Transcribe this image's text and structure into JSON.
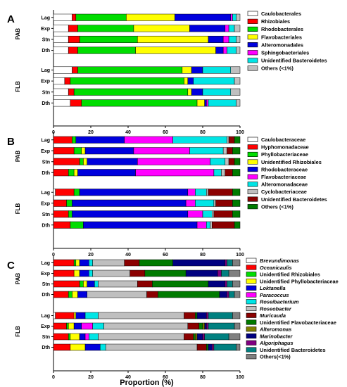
{
  "colors": {
    "white": "#FFFFFF",
    "red": "#FF0000",
    "green": "#00DD00",
    "yellow": "#FFFF00",
    "blue": "#0000DD",
    "magenta": "#FF00FF",
    "cyan": "#00E5E5",
    "gray": "#BFBFBF",
    "darkred": "#8B0000",
    "darkgreen": "#007A00",
    "olive": "#808000",
    "navy": "#000080",
    "purple": "#800080",
    "teal": "#008080",
    "dimgray": "#808080"
  },
  "chart_data": [
    {
      "type": "bar",
      "panel": "A",
      "orientation": "horizontal",
      "stacked": true,
      "xlim": [
        0,
        100
      ],
      "xticks": [
        "0",
        "20",
        "40",
        "60",
        "80",
        "100"
      ],
      "groups": [
        {
          "label": "PAB",
          "categories": [
            "Lag",
            "Exp",
            "Stn",
            "Dth"
          ]
        },
        {
          "label": "FLB",
          "categories": [
            "Lag",
            "Exp",
            "Stn",
            "Dth"
          ]
        }
      ],
      "series": [
        {
          "name": "Caulobacterales",
          "color": "white",
          "values": [
            [
              10,
              8,
              8,
              8
            ],
            [
              10,
              6,
              8,
              9
            ]
          ]
        },
        {
          "name": "Rhizobiales",
          "color": "red",
          "values": [
            [
              2,
              5,
              6,
              5
            ],
            [
              3,
              3,
              3,
              6
            ]
          ]
        },
        {
          "name": "Rhodobacterales",
          "color": "green",
          "values": [
            [
              27,
              30,
              31,
              31
            ],
            [
              56,
              61,
              61,
              62
            ]
          ]
        },
        {
          "name": "Flavobacteriales",
          "color": "yellow",
          "values": [
            [
              26,
              30,
              38,
              43
            ],
            [
              5,
              2,
              2,
              4
            ]
          ]
        },
        {
          "name": "Alteromonadales",
          "color": "blue",
          "values": [
            [
              30,
              19,
              8,
              4
            ],
            [
              6,
              3,
              6,
              1
            ]
          ]
        },
        {
          "name": "Sphingobacteriales",
          "color": "magenta",
          "values": [
            [
              1,
              2,
              3,
              2
            ],
            [
              0,
              0,
              0,
              1
            ]
          ]
        },
        {
          "name": "Unidentified Bacteroidetes",
          "color": "cyan",
          "values": [
            [
              2,
              3,
              4,
              5
            ],
            [
              15,
              22,
              15,
              15
            ]
          ]
        },
        {
          "name": "Others (<1%)",
          "color": "gray",
          "values": [
            [
              2,
              3,
              2,
              2
            ],
            [
              5,
              3,
              5,
              2
            ]
          ]
        }
      ]
    },
    {
      "type": "bar",
      "panel": "B",
      "orientation": "horizontal",
      "stacked": true,
      "xlim": [
        0,
        100
      ],
      "xticks": [
        "0",
        "20",
        "40",
        "60",
        "80",
        "100"
      ],
      "groups": [
        {
          "label": "PAB",
          "categories": [
            "Lag",
            "Exp",
            "Stn",
            "Dth"
          ]
        },
        {
          "label": "FLB",
          "categories": [
            "Lag",
            "Exp",
            "Stn",
            "Dth"
          ]
        }
      ],
      "series": [
        {
          "name": "Caulobacteraceae",
          "color": "white",
          "values": [
            [
              0,
              0,
              0,
              0
            ],
            [
              1,
              0,
              0,
              0
            ]
          ]
        },
        {
          "name": "Hyphomonadaceae",
          "color": "red",
          "values": [
            [
              10,
              11,
              14,
              8
            ],
            [
              10,
              7,
              8,
              9
            ]
          ]
        },
        {
          "name": "Phyllobacteriaceae",
          "color": "green",
          "values": [
            [
              2,
              4,
              2,
              3
            ],
            [
              3,
              3,
              2,
              7
            ]
          ]
        },
        {
          "name": "Unidentified Rhizobiales",
          "color": "yellow",
          "values": [
            [
              0,
              2,
              2,
              2
            ],
            [
              0,
              0,
              0,
              0
            ]
          ]
        },
        {
          "name": "Rhodobacteraceae",
          "color": "blue",
          "values": [
            [
              26,
              26,
              27,
              31
            ],
            [
              58,
              61,
              62,
              61
            ]
          ]
        },
        {
          "name": "Flavobacteriaceae",
          "color": "magenta",
          "values": [
            [
              26,
              30,
              39,
              42
            ],
            [
              4,
              5,
              8,
              5
            ]
          ]
        },
        {
          "name": "Alteromonadaceae",
          "color": "cyan",
          "values": [
            [
              29,
              18,
              8,
              4
            ],
            [
              6,
              10,
              5,
              2
            ]
          ]
        },
        {
          "name": "Cyclobacteriaceae",
          "color": "gray",
          "values": [
            [
              1,
              2,
              2,
              2
            ],
            [
              1,
              1,
              1,
              1
            ]
          ]
        },
        {
          "name": "Unidentified Bacteroidetes",
          "color": "darkred",
          "values": [
            [
              3,
              3,
              3,
              4
            ],
            [
              13,
              9,
              10,
              12
            ]
          ]
        },
        {
          "name": "Others (<1%)",
          "color": "darkgreen",
          "values": [
            [
              3,
              4,
              3,
              4
            ],
            [
              4,
              4,
              4,
              3
            ]
          ]
        }
      ]
    },
    {
      "type": "bar",
      "panel": "C",
      "orientation": "horizontal",
      "stacked": true,
      "xlim": [
        0,
        100
      ],
      "xticks": [
        "0",
        "20",
        "40",
        "60",
        "80",
        "100"
      ],
      "xlabel": "Proportion (%)",
      "groups": [
        {
          "label": "PAB",
          "categories": [
            "Lag",
            "Exp",
            "Stn",
            "Dth"
          ]
        },
        {
          "label": "FLB",
          "categories": [
            "Lag",
            "Exp",
            "Stn",
            "Dth"
          ]
        }
      ],
      "series": [
        {
          "name": "Brevundimonas",
          "italic": true,
          "color": "white",
          "values": [
            [
              0,
              0,
              0,
              0
            ],
            [
              1,
              0,
              0,
              0
            ]
          ]
        },
        {
          "name": "Oceanicaulis",
          "italic": true,
          "color": "red",
          "values": [
            [
              11,
              11,
              14,
              8
            ],
            [
              10,
              7,
              8,
              9
            ]
          ]
        },
        {
          "name": "Unidentified Rhizobiales",
          "color": "green",
          "values": [
            [
              1,
              0,
              2,
              2
            ],
            [
              0,
              1,
              1,
              0
            ]
          ]
        },
        {
          "name": "Unidentified Phyllobacteriaceae",
          "color": "yellow",
          "values": [
            [
              2,
              3,
              2,
              3
            ],
            [
              1,
              3,
              5,
              8
            ]
          ]
        },
        {
          "name": "Loktanella",
          "italic": true,
          "color": "blue",
          "values": [
            [
              5,
              5,
              4,
              5
            ],
            [
              5,
              4,
              3,
              8
            ]
          ]
        },
        {
          "name": "Paracoccus",
          "italic": true,
          "color": "magenta",
          "values": [
            [
              0,
              0,
              0,
              0
            ],
            [
              0,
              6,
              2,
              0
            ]
          ]
        },
        {
          "name": "Roseibacterium",
          "italic": true,
          "color": "cyan",
          "values": [
            [
              2,
              2,
              2,
              0
            ],
            [
              7,
              6,
              5,
              3
            ]
          ]
        },
        {
          "name": "Roseobacter",
          "italic": true,
          "color": "gray",
          "values": [
            [
              17,
              20,
              21,
              32
            ],
            [
              46,
              45,
              46,
              49
            ]
          ]
        },
        {
          "name": "Muricauda",
          "italic": true,
          "color": "darkred",
          "values": [
            [
              8,
              8,
              8,
              6
            ],
            [
              6,
              6,
              5,
              5
            ]
          ]
        },
        {
          "name": "Unidentified Flavobacteriaceae",
          "color": "darkgreen",
          "values": [
            [
              18,
              22,
              30,
              33
            ],
            [
              1,
              2,
              1,
              1
            ]
          ]
        },
        {
          "name": "Alteromonas",
          "italic": true,
          "color": "olive",
          "values": [
            [
              0,
              0,
              0,
              0
            ],
            [
              0,
              1,
              1,
              0
            ]
          ]
        },
        {
          "name": "Marinobacter",
          "italic": true,
          "color": "navy",
          "values": [
            [
              28,
              17,
              9,
              4
            ],
            [
              5,
              1,
              3,
              2
            ]
          ]
        },
        {
          "name": "Algoriphagus",
          "italic": true,
          "color": "purple",
          "values": [
            [
              1,
              2,
              1,
              1
            ],
            [
              1,
              1,
              1,
              1
            ]
          ]
        },
        {
          "name": "Unidentified Bacteroidetes",
          "color": "teal",
          "values": [
            [
              3,
              4,
              3,
              3
            ],
            [
              13,
              14,
              13,
              12
            ]
          ]
        },
        {
          "name": "Others(<1%)",
          "color": "dimgray",
          "values": [
            [
              4,
              6,
              4,
              3
            ],
            [
              4,
              3,
              6,
              2
            ]
          ]
        }
      ]
    }
  ]
}
